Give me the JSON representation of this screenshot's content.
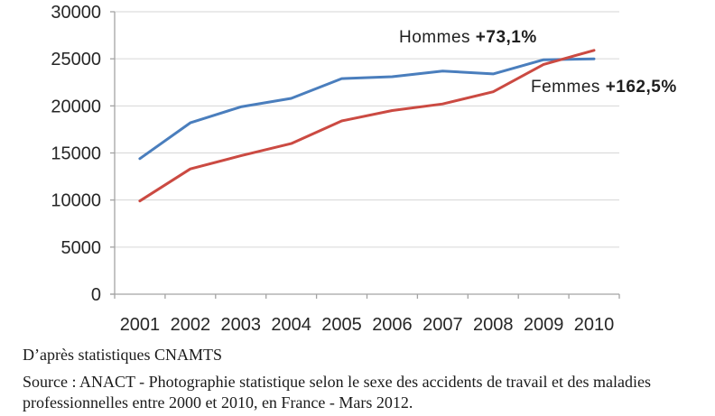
{
  "chart_data": {
    "type": "line",
    "title": "",
    "xlabel": "",
    "ylabel": "",
    "categories": [
      "2001",
      "2002",
      "2003",
      "2004",
      "2005",
      "2006",
      "2007",
      "2008",
      "2009",
      "2010"
    ],
    "series": [
      {
        "name": "Hommes",
        "color": "#4a7ebd",
        "values": [
          14400,
          18200,
          19900,
          20800,
          22900,
          23100,
          23700,
          23400,
          24900,
          25000
        ]
      },
      {
        "name": "Femmes",
        "color": "#cb4a42",
        "values": [
          9900,
          13300,
          14700,
          16000,
          18400,
          19500,
          20200,
          21500,
          24400,
          25900
        ]
      }
    ],
    "ylim": [
      0,
      30000
    ],
    "y_ticks": [
      0,
      5000,
      10000,
      15000,
      20000,
      25000,
      30000
    ],
    "grid": "horizontal",
    "legend_position": "inline-annotations"
  },
  "annotations": {
    "hommes": {
      "label": "Hommes ",
      "pct": "+73,1%"
    },
    "femmes": {
      "label": "Femmes ",
      "pct": "+162,5%"
    }
  },
  "footer": {
    "credit": "D’après statistiques CNAMTS",
    "source_line1": "Source : ANACT - Photographie statistique selon le sexe des accidents de travail et des maladies",
    "source_line2": "professionnelles entre 2000 et 2010, en France - Mars 2012."
  },
  "colors": {
    "hommes_line": "#4a7ebd",
    "femmes_line": "#cb4a42",
    "gridline": "#d6d6d6",
    "axis": "#a3a3a3",
    "tick_text": "#262626"
  }
}
